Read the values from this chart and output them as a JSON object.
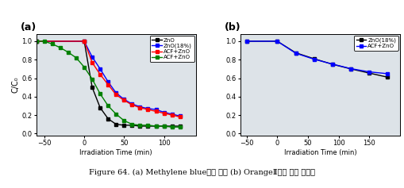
{
  "panel_a": {
    "title": "(a)",
    "xlabel": "Irradiation Time (min)",
    "ylabel": "C/C₀",
    "xlim": [
      -60,
      140
    ],
    "ylim": [
      -0.02,
      1.08
    ],
    "yticks": [
      0.0,
      0.2,
      0.4,
      0.6,
      0.8,
      1.0
    ],
    "xticks": [
      -50,
      0,
      50,
      100
    ],
    "series": [
      {
        "label": "ZnO",
        "color": "black",
        "x": [
          -60,
          0,
          10,
          20,
          30,
          40,
          50,
          60,
          70,
          80,
          90,
          100,
          110,
          120
        ],
        "y": [
          1.0,
          1.0,
          0.5,
          0.28,
          0.16,
          0.1,
          0.09,
          0.09,
          0.08,
          0.08,
          0.08,
          0.08,
          0.08,
          0.08
        ]
      },
      {
        "label": "ZnO(18%)",
        "color": "blue",
        "x": [
          -60,
          0,
          10,
          20,
          30,
          40,
          50,
          60,
          70,
          80,
          90,
          100,
          110,
          120
        ],
        "y": [
          1.0,
          1.0,
          0.83,
          0.7,
          0.56,
          0.44,
          0.37,
          0.32,
          0.29,
          0.27,
          0.26,
          0.23,
          0.21,
          0.19
        ]
      },
      {
        "label": "ACF+ZnO",
        "color": "red",
        "x": [
          -60,
          0,
          10,
          20,
          30,
          40,
          50,
          60,
          70,
          80,
          90,
          100,
          110,
          120
        ],
        "y": [
          1.0,
          1.0,
          0.77,
          0.64,
          0.53,
          0.42,
          0.36,
          0.31,
          0.28,
          0.26,
          0.24,
          0.22,
          0.2,
          0.18
        ]
      },
      {
        "label": "ACF+ZnO",
        "color": "green",
        "x": [
          -60,
          -50,
          -40,
          -30,
          -20,
          -10,
          0,
          10,
          20,
          30,
          40,
          50,
          60,
          70,
          80,
          90,
          100,
          110,
          120
        ],
        "y": [
          1.0,
          1.0,
          0.97,
          0.93,
          0.88,
          0.82,
          0.72,
          0.59,
          0.43,
          0.3,
          0.21,
          0.14,
          0.1,
          0.09,
          0.09,
          0.08,
          0.08,
          0.07,
          0.07
        ]
      }
    ]
  },
  "panel_b": {
    "title": "(b)",
    "xlabel": "Irradiation Time (min)",
    "ylabel": "",
    "xlim": [
      -60,
      200
    ],
    "ylim": [
      -0.02,
      1.08
    ],
    "yticks": [
      0.0,
      0.2,
      0.4,
      0.6,
      0.8,
      1.0
    ],
    "xticks": [
      -50,
      0,
      50,
      100,
      150
    ],
    "series": [
      {
        "label": "ZnO(18%)",
        "color": "black",
        "x": [
          -50,
          0,
          30,
          60,
          90,
          120,
          150,
          180
        ],
        "y": [
          1.0,
          1.0,
          0.875,
          0.81,
          0.75,
          0.7,
          0.655,
          0.61
        ]
      },
      {
        "label": "ACF+ZnO",
        "color": "blue",
        "x": [
          -50,
          0,
          30,
          60,
          90,
          120,
          150,
          180
        ],
        "y": [
          1.0,
          1.0,
          0.87,
          0.805,
          0.752,
          0.703,
          0.668,
          0.648
        ]
      }
    ]
  },
  "figure_caption": "Figure 64. (a) Methylene blue용액 분해 (b) OrangeⅡ용액 분해 그래프",
  "axes_bg_color": "#dde3e8",
  "fig_bg_color": "#ffffff"
}
